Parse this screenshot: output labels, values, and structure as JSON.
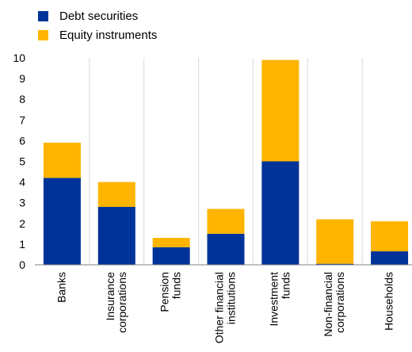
{
  "chart_data": {
    "type": "bar",
    "stacked": true,
    "categories": [
      [
        "Banks"
      ],
      [
        "Insurance",
        "corporations"
      ],
      [
        "Pension",
        "funds"
      ],
      [
        "Other financial",
        "institutions"
      ],
      [
        "Investment",
        "funds"
      ],
      [
        "Non-financial",
        "corporations"
      ],
      [
        "Households"
      ]
    ],
    "series": [
      {
        "name": "Debt securities",
        "color": "#003399",
        "values": [
          4.2,
          2.8,
          0.85,
          1.5,
          5.0,
          0.05,
          0.65
        ]
      },
      {
        "name": "Equity instruments",
        "color": "#FFB400",
        "values": [
          1.7,
          1.2,
          0.45,
          1.2,
          4.9,
          2.15,
          1.45
        ]
      }
    ],
    "ylim": [
      0,
      10
    ],
    "yticks": [
      0,
      1,
      2,
      3,
      4,
      5,
      6,
      7,
      8,
      9,
      10
    ],
    "grid": "vertical",
    "legend_position": "top-left"
  }
}
